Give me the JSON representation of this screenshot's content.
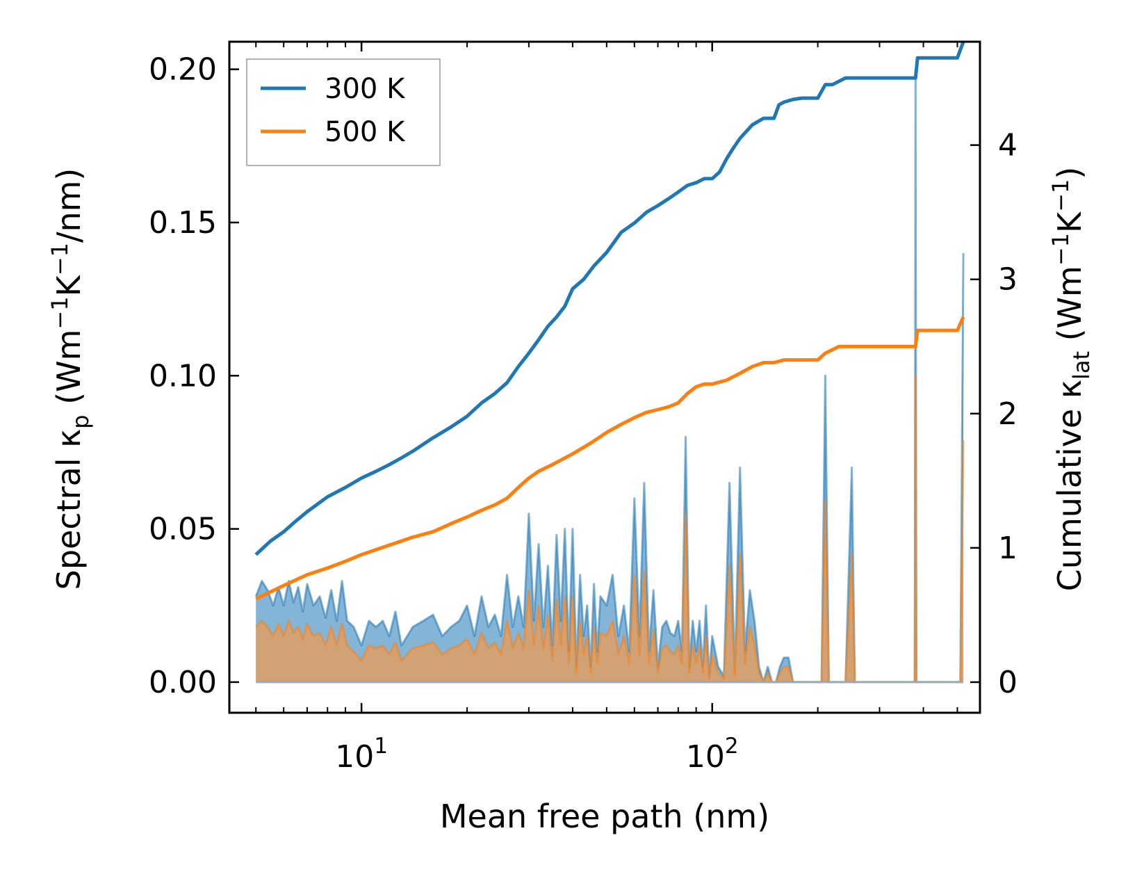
{
  "chart_data": {
    "type": "line",
    "xlabel": "Mean free path (nm)",
    "ylabel_left": {
      "main": "Spectral κ",
      "sub": "p",
      "units_open": " (Wm",
      "exp1": "−1",
      "mid": "K",
      "exp2": "−1",
      "units_close": "/nm)"
    },
    "ylabel_right": {
      "main": "Cumulative κ",
      "sub": "lat",
      "units_open": " (Wm",
      "exp1": "−1",
      "mid": "K",
      "exp2": "−1",
      "units_close": ")"
    },
    "x_scale": "log",
    "xlim": [
      4.2,
      580
    ],
    "ylim_left": [
      -0.01,
      0.209
    ],
    "ylim_right": [
      -0.228,
      4.77
    ],
    "x_ticks": [
      {
        "value": 10,
        "base": "10",
        "exp": "1"
      },
      {
        "value": 100,
        "base": "10",
        "exp": "2"
      }
    ],
    "y_ticks_left": [
      {
        "value": 0.0,
        "label": "0.00"
      },
      {
        "value": 0.05,
        "label": "0.05"
      },
      {
        "value": 0.1,
        "label": "0.10"
      },
      {
        "value": 0.15,
        "label": "0.15"
      },
      {
        "value": 0.2,
        "label": "0.20"
      }
    ],
    "y_ticks_right": [
      {
        "value": 0,
        "label": "0"
      },
      {
        "value": 1,
        "label": "1"
      },
      {
        "value": 2,
        "label": "2"
      },
      {
        "value": 3,
        "label": "3"
      },
      {
        "value": 4,
        "label": "4"
      }
    ],
    "legend": {
      "position": "upper-left",
      "entries": [
        "300 K",
        "500 K"
      ]
    },
    "colors": {
      "300 K": "#1f77b4",
      "500 K": "#ff7f0e",
      "spectral_300_fill": "#1f77b4",
      "spectral_500_fill": "#d9a06a"
    },
    "series": [
      {
        "name": "300 K",
        "kind": "cumulative",
        "axis": "right",
        "x": [
          5.0,
          5.5,
          6.0,
          6.5,
          7.0,
          8.0,
          9.0,
          10,
          11,
          12,
          13,
          14,
          16,
          18,
          20,
          22,
          24,
          26,
          28,
          30,
          32,
          34,
          36,
          38,
          40,
          43,
          46,
          50,
          55,
          60,
          65,
          70,
          75,
          80,
          85,
          90,
          95,
          100,
          105,
          110,
          115,
          120,
          130,
          140,
          150,
          155,
          160,
          170,
          180,
          200,
          210,
          220,
          240,
          260,
          300,
          380,
          385,
          450,
          500,
          520
        ],
        "y": [
          0.95,
          1.05,
          1.12,
          1.2,
          1.27,
          1.38,
          1.45,
          1.52,
          1.57,
          1.62,
          1.67,
          1.72,
          1.82,
          1.9,
          1.98,
          2.08,
          2.15,
          2.23,
          2.35,
          2.45,
          2.55,
          2.65,
          2.72,
          2.8,
          2.93,
          3.0,
          3.1,
          3.2,
          3.35,
          3.42,
          3.5,
          3.55,
          3.6,
          3.65,
          3.7,
          3.72,
          3.75,
          3.75,
          3.8,
          3.9,
          3.98,
          4.05,
          4.15,
          4.2,
          4.2,
          4.3,
          4.32,
          4.34,
          4.35,
          4.35,
          4.45,
          4.45,
          4.5,
          4.5,
          4.5,
          4.5,
          4.65,
          4.65,
          4.65,
          4.77
        ]
      },
      {
        "name": "500 K",
        "kind": "cumulative",
        "axis": "right",
        "x": [
          5.0,
          6.0,
          7.0,
          8.0,
          9.0,
          10,
          12,
          14,
          16,
          18,
          20,
          22,
          24,
          26,
          28,
          30,
          32,
          35,
          40,
          45,
          50,
          55,
          60,
          65,
          70,
          75,
          80,
          85,
          90,
          95,
          100,
          110,
          120,
          130,
          140,
          150,
          160,
          180,
          200,
          210,
          230,
          260,
          300,
          380,
          385,
          450,
          500,
          520
        ],
        "y": [
          0.62,
          0.72,
          0.8,
          0.85,
          0.9,
          0.95,
          1.02,
          1.08,
          1.12,
          1.18,
          1.23,
          1.28,
          1.32,
          1.37,
          1.45,
          1.52,
          1.57,
          1.62,
          1.7,
          1.78,
          1.86,
          1.92,
          1.97,
          2.01,
          2.03,
          2.05,
          2.08,
          2.15,
          2.2,
          2.22,
          2.22,
          2.25,
          2.3,
          2.35,
          2.38,
          2.38,
          2.4,
          2.4,
          2.4,
          2.45,
          2.5,
          2.5,
          2.5,
          2.5,
          2.62,
          2.62,
          2.62,
          2.72
        ]
      },
      {
        "name": "300 K spectral",
        "kind": "spectral",
        "axis": "left",
        "x": [
          5.0,
          5.2,
          5.4,
          5.6,
          5.8,
          6.0,
          6.2,
          6.4,
          6.6,
          6.8,
          7.0,
          7.3,
          7.6,
          7.9,
          8.2,
          8.5,
          8.8,
          9.1,
          9.5,
          10,
          10.5,
          11,
          11.5,
          12,
          12.5,
          13,
          14,
          15,
          16,
          17,
          18,
          19,
          20,
          21,
          22,
          23,
          24,
          25,
          26,
          27,
          28,
          29,
          30,
          31,
          32,
          33,
          34,
          35,
          36,
          37,
          38,
          39,
          40,
          41,
          42,
          43,
          44,
          45,
          46,
          47,
          48,
          50,
          52,
          54,
          56,
          58,
          60,
          62,
          64,
          66,
          68,
          70,
          72,
          74,
          76,
          78,
          80,
          82,
          84,
          86,
          88,
          90,
          92,
          94,
          96,
          98,
          100,
          104,
          108,
          112,
          116,
          120,
          124,
          128,
          132,
          136,
          140,
          144,
          148,
          152,
          156,
          160,
          165,
          170,
          175,
          180,
          190,
          200,
          205,
          210,
          215,
          220,
          230,
          240,
          250,
          255,
          260,
          270,
          300,
          350,
          378,
          380,
          382,
          390,
          400,
          450,
          500,
          510,
          520
        ],
        "y": [
          0.028,
          0.033,
          0.03,
          0.025,
          0.031,
          0.025,
          0.033,
          0.026,
          0.031,
          0.023,
          0.032,
          0.025,
          0.028,
          0.021,
          0.03,
          0.02,
          0.033,
          0.02,
          0.018,
          0.012,
          0.02,
          0.018,
          0.02,
          0.015,
          0.023,
          0.012,
          0.018,
          0.02,
          0.022,
          0.015,
          0.018,
          0.02,
          0.025,
          0.015,
          0.028,
          0.018,
          0.022,
          0.015,
          0.035,
          0.018,
          0.028,
          0.018,
          0.055,
          0.02,
          0.045,
          0.018,
          0.038,
          0.012,
          0.048,
          0.02,
          0.05,
          0.01,
          0.05,
          0.005,
          0.035,
          0.015,
          0.025,
          0.005,
          0.032,
          0.01,
          0.028,
          0.025,
          0.035,
          0.015,
          0.025,
          0.01,
          0.06,
          0.015,
          0.065,
          0.01,
          0.03,
          0.005,
          0.018,
          0.02,
          0.016,
          0.015,
          0.02,
          0.01,
          0.08,
          0.005,
          0.02,
          0.01,
          0.02,
          0.005,
          0.025,
          0.002,
          0.015,
          0.005,
          0.002,
          0.065,
          0.003,
          0.07,
          0.01,
          0.03,
          0.02,
          0.005,
          0.0,
          0.005,
          0.0,
          0.0,
          0.005,
          0.008,
          0.008,
          0.0,
          0.0,
          0.0,
          0.0,
          0.0,
          0.0,
          0.1,
          0.0,
          0.0,
          0.0,
          0.0,
          0.07,
          0.0,
          0.0,
          0.0,
          0.0,
          0.0,
          0.0,
          0.2,
          0.0,
          0.0,
          0.0,
          0.0,
          0.0,
          0.0,
          0.14
        ]
      },
      {
        "name": "500 K spectral",
        "kind": "spectral",
        "axis": "left",
        "x": [
          5.0,
          5.2,
          5.4,
          5.6,
          5.8,
          6.0,
          6.2,
          6.4,
          6.6,
          6.8,
          7.0,
          7.3,
          7.6,
          7.9,
          8.2,
          8.5,
          8.8,
          9.1,
          9.5,
          10,
          10.5,
          11,
          11.5,
          12,
          12.5,
          13,
          14,
          15,
          16,
          17,
          18,
          19,
          20,
          21,
          22,
          23,
          24,
          25,
          26,
          27,
          28,
          29,
          30,
          31,
          32,
          33,
          34,
          35,
          36,
          37,
          38,
          39,
          40,
          41,
          42,
          43,
          44,
          45,
          46,
          47,
          48,
          50,
          52,
          54,
          56,
          58,
          60,
          62,
          64,
          66,
          68,
          70,
          72,
          74,
          76,
          78,
          80,
          82,
          84,
          86,
          88,
          90,
          92,
          94,
          96,
          98,
          100,
          104,
          108,
          112,
          116,
          120,
          124,
          128,
          132,
          136,
          140,
          144,
          148,
          152,
          156,
          160,
          165,
          170,
          175,
          180,
          190,
          200,
          205,
          210,
          215,
          220,
          230,
          240,
          250,
          255,
          260,
          270,
          300,
          350,
          378,
          380,
          382,
          390,
          400,
          450,
          500,
          510,
          520
        ],
        "y": [
          0.018,
          0.02,
          0.018,
          0.015,
          0.019,
          0.015,
          0.02,
          0.016,
          0.018,
          0.014,
          0.019,
          0.015,
          0.016,
          0.012,
          0.018,
          0.012,
          0.019,
          0.012,
          0.01,
          0.007,
          0.012,
          0.011,
          0.012,
          0.009,
          0.013,
          0.007,
          0.011,
          0.012,
          0.013,
          0.009,
          0.011,
          0.012,
          0.014,
          0.009,
          0.016,
          0.011,
          0.013,
          0.009,
          0.02,
          0.011,
          0.016,
          0.011,
          0.03,
          0.012,
          0.025,
          0.011,
          0.022,
          0.007,
          0.027,
          0.012,
          0.028,
          0.006,
          0.028,
          0.003,
          0.02,
          0.009,
          0.015,
          0.003,
          0.018,
          0.006,
          0.016,
          0.015,
          0.02,
          0.009,
          0.015,
          0.006,
          0.035,
          0.009,
          0.036,
          0.006,
          0.017,
          0.003,
          0.011,
          0.012,
          0.01,
          0.009,
          0.012,
          0.006,
          0.055,
          0.003,
          0.012,
          0.006,
          0.012,
          0.003,
          0.015,
          0.001,
          0.009,
          0.003,
          0.001,
          0.038,
          0.002,
          0.042,
          0.006,
          0.018,
          0.012,
          0.003,
          0.0,
          0.003,
          0.0,
          0.0,
          0.003,
          0.005,
          0.005,
          0.0,
          0.0,
          0.0,
          0.0,
          0.0,
          0.0,
          0.059,
          0.0,
          0.0,
          0.0,
          0.0,
          0.042,
          0.0,
          0.0,
          0.0,
          0.0,
          0.0,
          0.0,
          0.1,
          0.0,
          0.0,
          0.0,
          0.0,
          0.0,
          0.0,
          0.079
        ]
      }
    ]
  }
}
